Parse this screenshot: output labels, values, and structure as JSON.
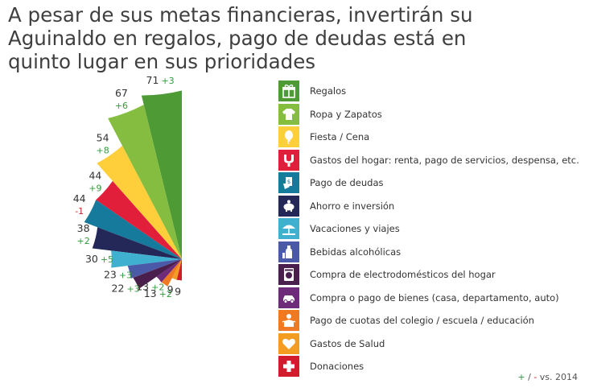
{
  "title": "A pesar de sus metas financieras, invertirán su Aguinaldo en regalos, pago de deudas está en quinto lugar en sus prioridades",
  "footnote": {
    "plus": "+",
    "sep": " / ",
    "minus": "-",
    "text": " vs. 2014"
  },
  "colors": {
    "positive": "#2e9d3a",
    "negative": "#c1272d",
    "value": "#333333"
  },
  "chart_data": {
    "type": "polar-bar",
    "title": "A pesar de sus metas financieras, invertirán su Aguinaldo en regalos, pago de deudas está en quinto lugar en sus prioridades",
    "units": "%",
    "categories": [
      "Regalos",
      "Ropa y Zapatos",
      "Fiesta / Cena",
      "Gastos del hogar: renta, pago de servicios, despensa, etc.",
      "Pago de deudas",
      "Ahorro e inversión",
      "Vacaciones y viajes",
      "Bebidas alcohólicas",
      "Compra de electrodomésticos del hogar",
      "Compra o pago de bienes (casa, departamento, auto)",
      "Pago de cuotas del colegio / escuela / educación",
      "Gastos de Salud",
      "Donaciones"
    ],
    "series": [
      {
        "values": [
          71,
          67,
          54,
          44,
          44,
          38,
          30,
          23,
          22,
          13,
          13,
          9,
          9
        ]
      }
    ],
    "change_vs_2014": [
      "+3",
      "+6",
      "+8",
      "+9",
      "-1",
      "+2",
      "+5",
      "+3",
      "+3",
      "+2",
      "+2",
      "",
      ""
    ],
    "colors": [
      "#4e9a35",
      "#84bd3f",
      "#fecf3a",
      "#e11f3a",
      "#167a9c",
      "#232859",
      "#3fb0cf",
      "#4a5aa8",
      "#4a1f4e",
      "#6d2b79",
      "#ef7a22",
      "#f39c22",
      "#d21c2d"
    ],
    "icons": [
      "gift-icon",
      "tshirt-icon",
      "balloon-icon",
      "home-expenses-icon",
      "debt-icon",
      "piggy-bank-icon",
      "beach-umbrella-icon",
      "bottle-icon",
      "washing-machine-icon",
      "car-icon",
      "school-icon",
      "heart-icon",
      "cross-icon"
    ],
    "legend_position": "right",
    "comparison_note": "+ / - vs. 2014"
  }
}
